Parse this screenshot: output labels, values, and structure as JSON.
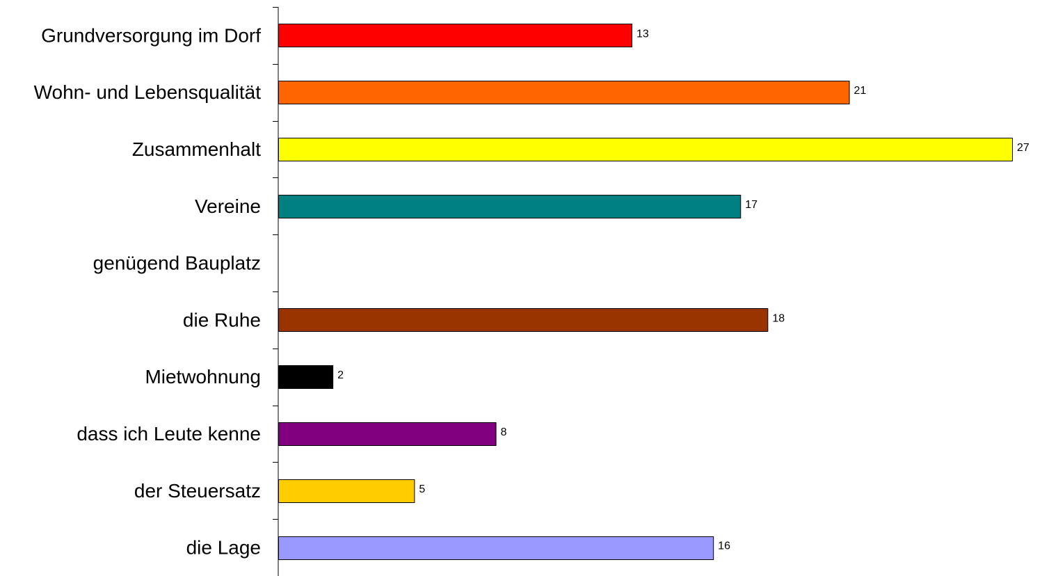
{
  "chart_data": {
    "type": "bar",
    "orientation": "horizontal",
    "title": "",
    "xlabel": "",
    "ylabel": "",
    "categories": [
      "Grundversorgung im Dorf",
      "Wohn- und Lebensqualität",
      "Zusammenhalt",
      "Vereine",
      "genügend Bauplatz",
      "die Ruhe",
      "Mietwohnung",
      "dass ich Leute kenne",
      "der Steuersatz",
      "die Lage"
    ],
    "values": [
      13,
      21,
      27,
      17,
      0,
      18,
      2,
      8,
      5,
      16
    ],
    "value_labels": [
      "13",
      "21",
      "27",
      "17",
      "",
      "18",
      "2",
      "8",
      "5",
      "16"
    ],
    "colors": [
      "#ff0000",
      "#ff6600",
      "#ffff00",
      "#008080",
      "#ffffff",
      "#993300",
      "#000000",
      "#800080",
      "#ffcc00",
      "#9999ff"
    ],
    "xlim": [
      0,
      27
    ],
    "grid": false,
    "legend": "none"
  }
}
